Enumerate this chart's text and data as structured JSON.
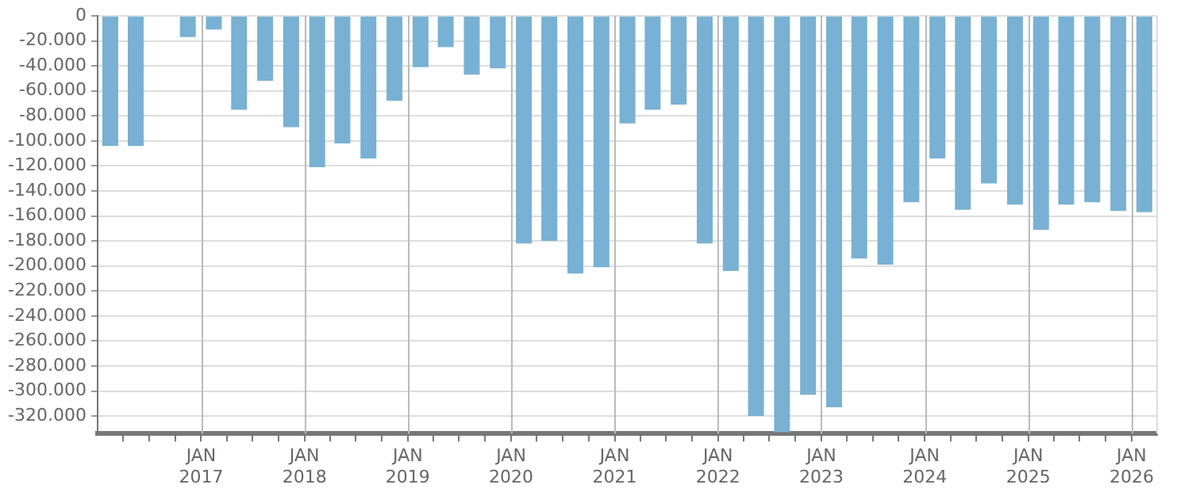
{
  "chart_data": {
    "type": "bar",
    "color": "#78b1d3",
    "x": [
      "2016-02-15",
      "2016-05-15",
      "2016-08-15",
      "2016-11-15",
      "2017-02-15",
      "2017-05-15",
      "2017-08-15",
      "2017-11-15",
      "2018-02-15",
      "2018-05-15",
      "2018-08-15",
      "2018-11-15",
      "2019-02-15",
      "2019-05-15",
      "2019-08-15",
      "2019-11-15",
      "2020-02-15",
      "2020-05-15",
      "2020-08-15",
      "2020-11-15",
      "2021-02-15",
      "2021-05-15",
      "2021-08-15",
      "2021-11-15",
      "2022-02-15",
      "2022-05-15",
      "2022-08-15",
      "2022-11-15",
      "2023-02-15",
      "2023-05-15",
      "2023-08-15",
      "2023-11-15",
      "2024-02-15",
      "2024-05-15",
      "2024-08-15",
      "2024-11-15",
      "2025-02-15",
      "2025-05-15",
      "2025-08-15",
      "2025-11-15",
      "2026-02-15"
    ],
    "values": [
      -104000,
      -104000,
      null,
      -17000,
      -11000,
      -75000,
      -52000,
      -89000,
      -121000,
      -102000,
      -114000,
      -68000,
      -41000,
      -25000,
      -47000,
      -42000,
      -182000,
      -180000,
      -206000,
      -201000,
      -86000,
      -75000,
      -71000,
      -182000,
      -204000,
      -320000,
      -333000,
      -303000,
      -313000,
      -194000,
      -199000,
      -149000,
      -114000,
      -155000,
      -134000,
      -151000,
      -171000,
      -151000,
      -149000,
      -156000,
      -157000
    ],
    "xlim": [
      "2016-01-01",
      "2026-04-01"
    ],
    "xticks": [
      {
        "value": "2016-04-01",
        "label": null
      },
      {
        "value": "2016-07-01",
        "label": null
      },
      {
        "value": "2016-10-01",
        "label": null
      },
      {
        "value": "2017-01-01",
        "label": "JAN 2017"
      },
      {
        "value": "2017-04-01",
        "label": null
      },
      {
        "value": "2017-07-01",
        "label": null
      },
      {
        "value": "2017-10-01",
        "label": null
      },
      {
        "value": "2018-01-01",
        "label": "JAN 2018"
      },
      {
        "value": "2018-04-01",
        "label": null
      },
      {
        "value": "2018-07-01",
        "label": null
      },
      {
        "value": "2018-10-01",
        "label": null
      },
      {
        "value": "2019-01-01",
        "label": "JAN 2019"
      },
      {
        "value": "2019-04-01",
        "label": null
      },
      {
        "value": "2019-07-01",
        "label": null
      },
      {
        "value": "2019-10-01",
        "label": null
      },
      {
        "value": "2020-01-01",
        "label": "JAN 2020"
      },
      {
        "value": "2020-04-01",
        "label": null
      },
      {
        "value": "2020-07-01",
        "label": null
      },
      {
        "value": "2020-10-01",
        "label": null
      },
      {
        "value": "2021-01-01",
        "label": "JAN 2021"
      },
      {
        "value": "2021-04-01",
        "label": null
      },
      {
        "value": "2021-07-01",
        "label": null
      },
      {
        "value": "2021-10-01",
        "label": null
      },
      {
        "value": "2022-01-01",
        "label": "JAN 2022"
      },
      {
        "value": "2022-04-01",
        "label": null
      },
      {
        "value": "2022-07-01",
        "label": null
      },
      {
        "value": "2022-10-01",
        "label": null
      },
      {
        "value": "2023-01-01",
        "label": "JAN 2023"
      },
      {
        "value": "2023-04-01",
        "label": null
      },
      {
        "value": "2023-07-01",
        "label": null
      },
      {
        "value": "2023-10-01",
        "label": null
      },
      {
        "value": "2024-01-01",
        "label": "JAN 2024"
      },
      {
        "value": "2024-04-01",
        "label": null
      },
      {
        "value": "2024-07-01",
        "label": null
      },
      {
        "value": "2024-10-01",
        "label": null
      },
      {
        "value": "2025-01-01",
        "label": "JAN 2025"
      },
      {
        "value": "2025-04-01",
        "label": null
      },
      {
        "value": "2025-07-01",
        "label": null
      },
      {
        "value": "2025-10-01",
        "label": null
      },
      {
        "value": "2026-01-01",
        "label": "JAN 2026"
      }
    ],
    "ylim": [
      -334000,
      0
    ],
    "yticks": [
      {
        "value": 0,
        "label": "0"
      },
      {
        "value": -20000,
        "label": "-20.000"
      },
      {
        "value": -40000,
        "label": "-40.000"
      },
      {
        "value": -60000,
        "label": "-60.000"
      },
      {
        "value": -80000,
        "label": "-80.000"
      },
      {
        "value": -100000,
        "label": "-100.000"
      },
      {
        "value": -120000,
        "label": "-120.000"
      },
      {
        "value": -140000,
        "label": "-140.000"
      },
      {
        "value": -160000,
        "label": "-160.000"
      },
      {
        "value": -180000,
        "label": "-180.000"
      },
      {
        "value": -200000,
        "label": "-200.000"
      },
      {
        "value": -220000,
        "label": "-220.000"
      },
      {
        "value": -240000,
        "label": "-240.000"
      },
      {
        "value": -260000,
        "label": "-260.000"
      },
      {
        "value": -280000,
        "label": "-280.000"
      },
      {
        "value": -300000,
        "label": "-300.000"
      },
      {
        "value": -320000,
        "label": "-320.000"
      }
    ],
    "grid": true
  }
}
